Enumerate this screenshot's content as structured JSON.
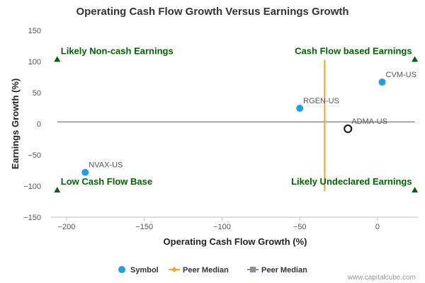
{
  "chart_data": {
    "type": "scatter",
    "title": "Operating Cash Flow Growth Versus Earnings Growth",
    "xlabel": "Operating Cash Flow Growth (%)",
    "ylabel": "Earnings Growth (%)",
    "xlim": [
      -210,
      26
    ],
    "ylim": [
      -150,
      150
    ],
    "xticks": [
      -200,
      -150,
      -100,
      -50,
      0
    ],
    "yticks": [
      150,
      100,
      50,
      0,
      -50,
      -100,
      -150
    ],
    "points": [
      {
        "label": "CVM-US",
        "x": 3,
        "y": 67,
        "kind": "symbol"
      },
      {
        "label": "RGEN-US",
        "x": -50,
        "y": 25,
        "kind": "symbol"
      },
      {
        "label": "NVAX-US",
        "x": -188,
        "y": -78,
        "kind": "symbol"
      },
      {
        "label": "ADMA-US",
        "x": -19,
        "y": -8,
        "kind": "highlight"
      }
    ],
    "peer_median": {
      "x": -34,
      "y": 3,
      "x_y_range": [
        -108,
        103
      ],
      "y_x_range": [
        -206,
        24
      ]
    },
    "quadrants": [
      {
        "label": "Likely Non-cash Earnings",
        "x": -206,
        "y": 103,
        "anchor": "start"
      },
      {
        "label": "Cash Flow based Earnings",
        "x": 24,
        "y": 103,
        "anchor": "end"
      },
      {
        "label": "Low Cash Flow Base",
        "x": -206,
        "y": -107,
        "anchor": "start"
      },
      {
        "label": "Likely Undeclared Earnings",
        "x": 24,
        "y": -107,
        "anchor": "end"
      }
    ],
    "legend": [
      {
        "label": "Symbol",
        "marker": "circle",
        "color": "#1aa1e6"
      },
      {
        "label": "Peer Median",
        "marker": "diamond-line",
        "color": "#f5a623"
      },
      {
        "label": "Peer Median",
        "marker": "square-line",
        "color": "#8c8f99"
      }
    ],
    "legend_position": "bottom-center",
    "grid": false,
    "colors": {
      "symbol": "#1aa1e6",
      "vertical_median": "#f5a623",
      "horizontal_median": "#8c8f99",
      "quadrant_text": "#006400",
      "highlight_stroke": "#111111"
    }
  },
  "credit": "www.capitalcube.com"
}
